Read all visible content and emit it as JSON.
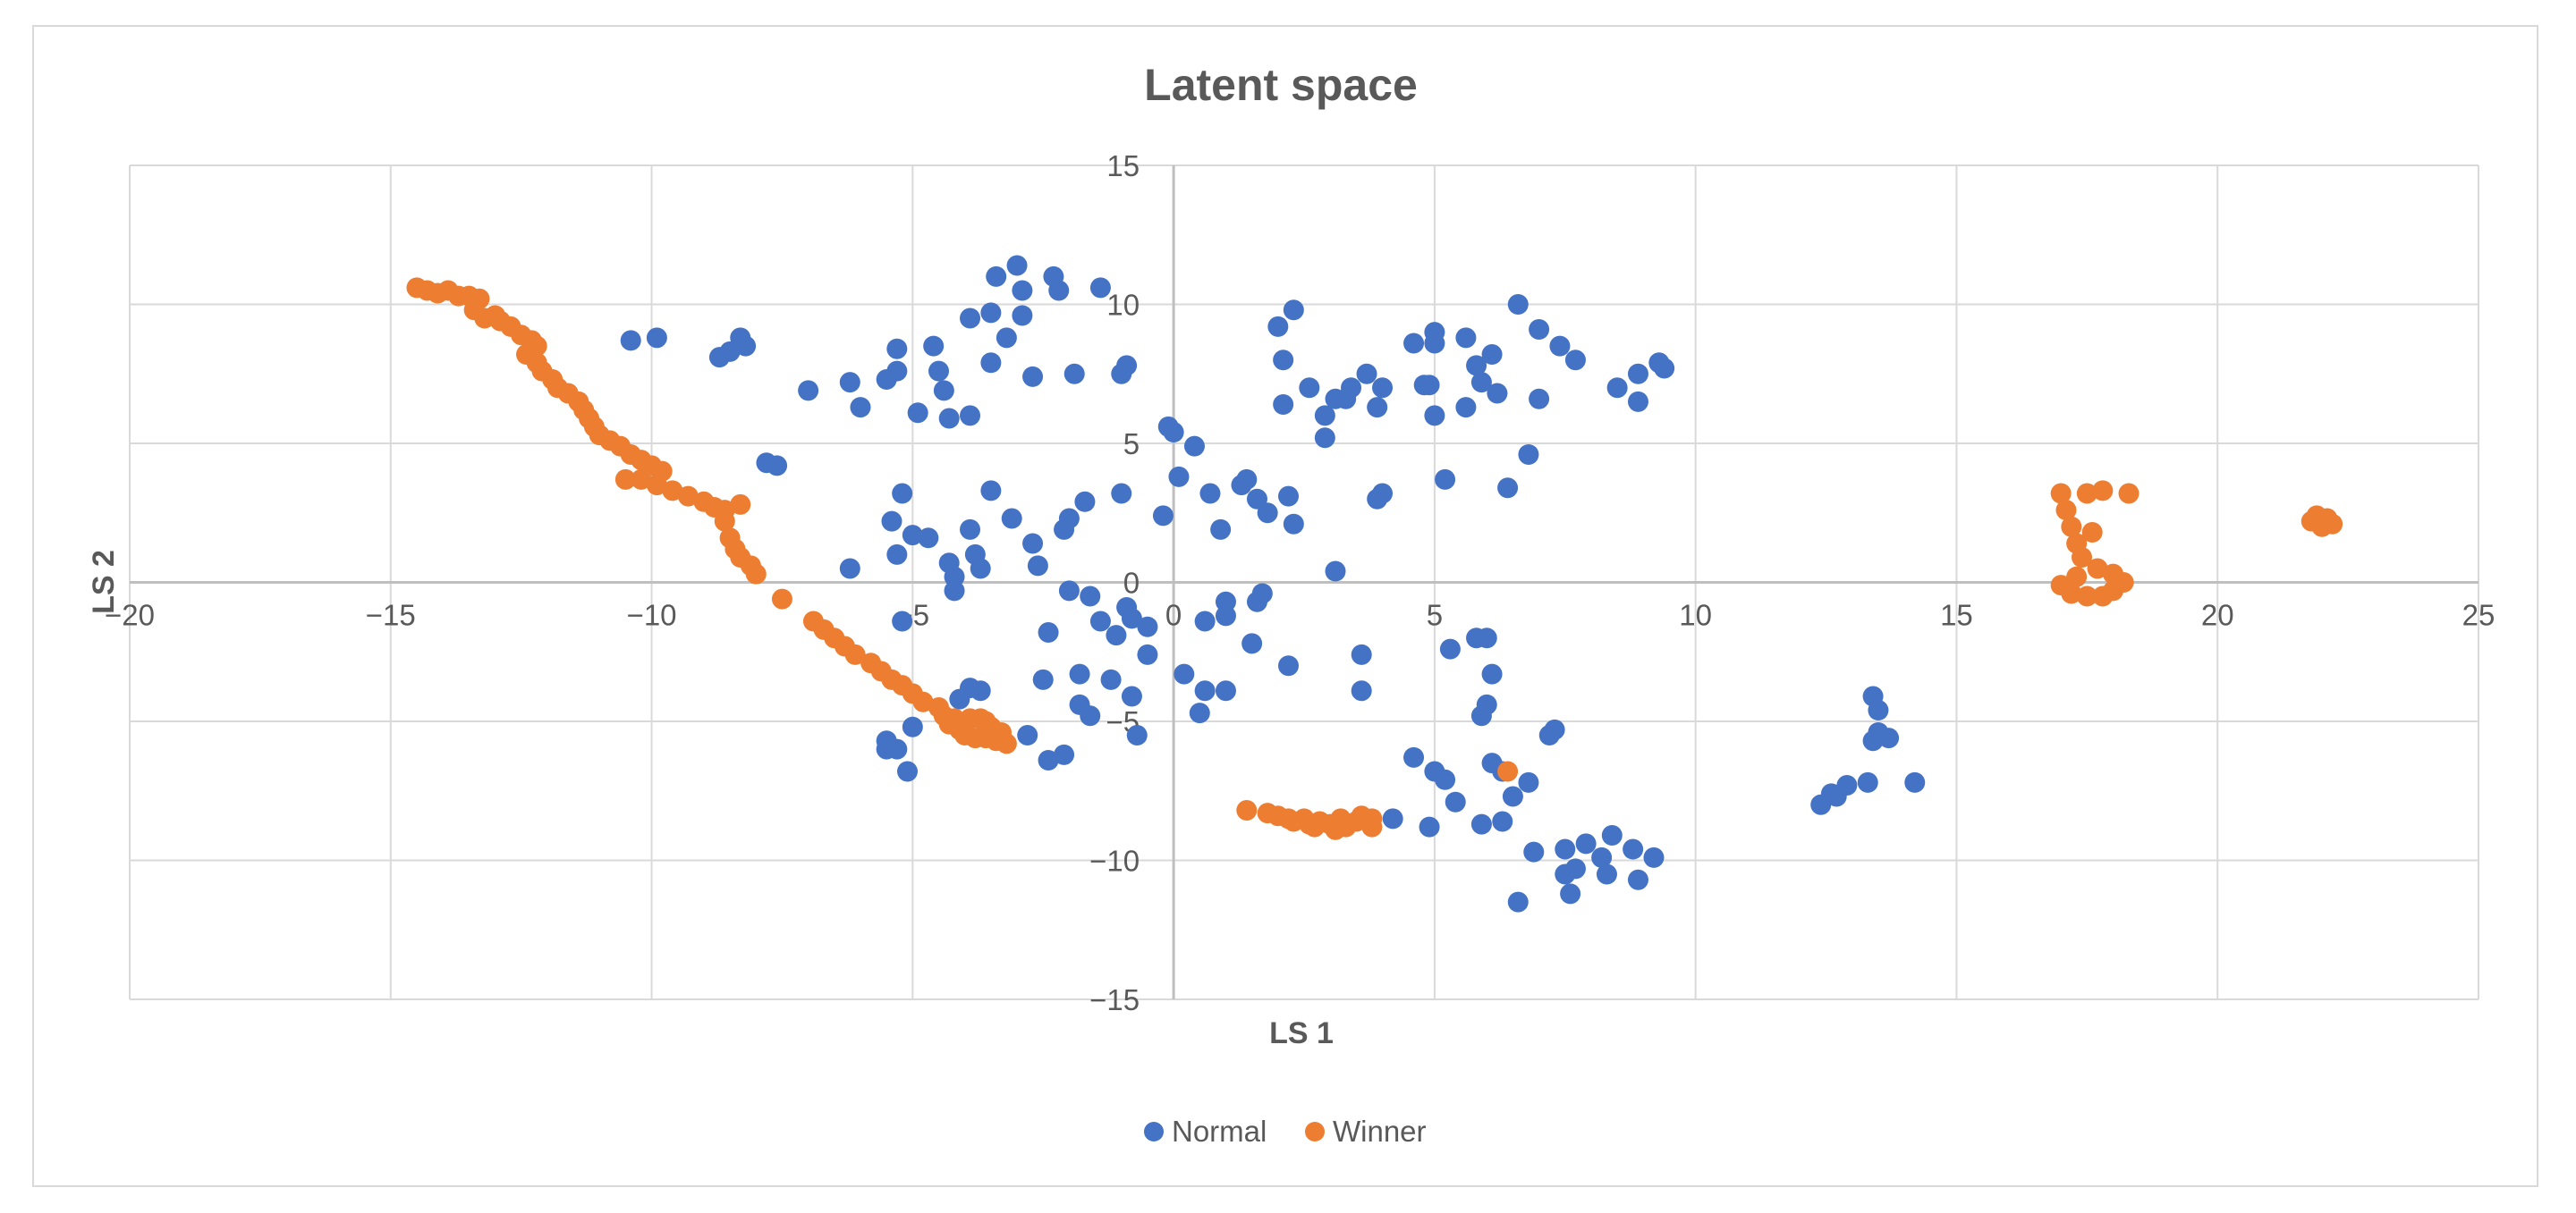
{
  "chart_data": {
    "type": "scatter",
    "title": "Latent space",
    "xlabel": "LS 1",
    "ylabel": "LS 2",
    "xlim": [
      -20,
      25
    ],
    "ylim": [
      -15,
      15
    ],
    "xticks": [
      -20,
      -15,
      -10,
      -5,
      0,
      5,
      10,
      15,
      20,
      25
    ],
    "yticks": [
      -15,
      -10,
      -5,
      0,
      5,
      10,
      15
    ],
    "grid": true,
    "legend_position": "bottom",
    "series": [
      {
        "name": "Normal",
        "color": "#4472c4",
        "points": [
          [
            -10.4,
            8.7
          ],
          [
            -9.9,
            8.8
          ],
          [
            -8.7,
            8.1
          ],
          [
            -8.5,
            8.3
          ],
          [
            -8.3,
            8.8
          ],
          [
            -8.2,
            8.5
          ],
          [
            -7.8,
            4.3
          ],
          [
            -7.6,
            4.2
          ],
          [
            -7.0,
            6.9
          ],
          [
            -6.2,
            7.2
          ],
          [
            -6.0,
            6.3
          ],
          [
            -6.2,
            0.5
          ],
          [
            -5.5,
            7.3
          ],
          [
            -5.3,
            7.6
          ],
          [
            -5.3,
            8.4
          ],
          [
            -5.4,
            2.2
          ],
          [
            -5.2,
            3.2
          ],
          [
            -5.3,
            1.0
          ],
          [
            -5.0,
            1.7
          ],
          [
            -4.9,
            6.1
          ],
          [
            -4.6,
            8.5
          ],
          [
            -4.7,
            1.6
          ],
          [
            -4.5,
            7.6
          ],
          [
            -4.4,
            6.9
          ],
          [
            -4.3,
            5.9
          ],
          [
            -4.3,
            0.7
          ],
          [
            -4.2,
            0.2
          ],
          [
            -4.2,
            -0.3
          ],
          [
            -3.9,
            6.0
          ],
          [
            -3.9,
            9.5
          ],
          [
            -3.9,
            1.9
          ],
          [
            -3.8,
            1.0
          ],
          [
            -3.7,
            0.5
          ],
          [
            -3.5,
            7.9
          ],
          [
            -3.5,
            9.7
          ],
          [
            -3.5,
            3.3
          ],
          [
            -3.4,
            11.0
          ],
          [
            -3.2,
            8.8
          ],
          [
            -3.1,
            2.3
          ],
          [
            -3.0,
            11.4
          ],
          [
            -2.9,
            10.5
          ],
          [
            -2.9,
            9.6
          ],
          [
            -2.8,
            -5.5
          ],
          [
            -2.7,
            1.4
          ],
          [
            -2.7,
            7.4
          ],
          [
            -2.6,
            0.6
          ],
          [
            -2.3,
            11.0
          ],
          [
            -2.2,
            10.5
          ],
          [
            -2.4,
            -1.8
          ],
          [
            -2.5,
            -3.5
          ],
          [
            -2.4,
            -6.4
          ],
          [
            -2.1,
            -6.2
          ],
          [
            -2.1,
            1.9
          ],
          [
            -2.0,
            2.3
          ],
          [
            -2.0,
            -0.3
          ],
          [
            -1.9,
            7.5
          ],
          [
            -1.8,
            -3.3
          ],
          [
            -1.8,
            -4.4
          ],
          [
            -1.7,
            2.9
          ],
          [
            -1.6,
            -0.5
          ],
          [
            -1.6,
            -4.8
          ],
          [
            -1.4,
            -1.4
          ],
          [
            -1.4,
            10.6
          ],
          [
            -1.2,
            -3.5
          ],
          [
            -1.1,
            -1.9
          ],
          [
            -1.0,
            3.2
          ],
          [
            -1.0,
            7.5
          ],
          [
            -0.9,
            7.8
          ],
          [
            -0.9,
            -0.9
          ],
          [
            -0.8,
            -1.3
          ],
          [
            -0.8,
            -4.1
          ],
          [
            -0.7,
            -5.5
          ],
          [
            -0.5,
            -1.6
          ],
          [
            -0.5,
            -2.6
          ],
          [
            -0.2,
            2.4
          ],
          [
            -0.1,
            5.6
          ],
          [
            0.0,
            5.4
          ],
          [
            0.1,
            3.8
          ],
          [
            0.2,
            -3.3
          ],
          [
            0.4,
            4.9
          ],
          [
            0.5,
            -4.7
          ],
          [
            0.6,
            -3.9
          ],
          [
            0.6,
            -1.4
          ],
          [
            0.7,
            3.2
          ],
          [
            0.9,
            1.9
          ],
          [
            1.0,
            -0.7
          ],
          [
            1.0,
            -1.2
          ],
          [
            1.0,
            -3.9
          ],
          [
            1.3,
            3.5
          ],
          [
            1.4,
            3.7
          ],
          [
            1.5,
            -2.2
          ],
          [
            1.6,
            3.0
          ],
          [
            1.6,
            -0.7
          ],
          [
            1.7,
            -0.4
          ],
          [
            1.8,
            2.5
          ],
          [
            2.0,
            9.2
          ],
          [
            2.1,
            8.0
          ],
          [
            2.1,
            6.4
          ],
          [
            2.2,
            3.1
          ],
          [
            2.3,
            2.1
          ],
          [
            2.3,
            9.8
          ],
          [
            2.2,
            -3.0
          ],
          [
            2.6,
            7.0
          ],
          [
            2.9,
            5.2
          ],
          [
            2.9,
            6.0
          ],
          [
            3.1,
            6.6
          ],
          [
            3.1,
            0.4
          ],
          [
            3.3,
            6.6
          ],
          [
            3.4,
            7.0
          ],
          [
            3.6,
            -2.6
          ],
          [
            3.6,
            -3.9
          ],
          [
            3.7,
            7.5
          ],
          [
            3.9,
            3.0
          ],
          [
            3.9,
            6.3
          ],
          [
            4.0,
            7.0
          ],
          [
            4.0,
            3.2
          ],
          [
            4.2,
            -8.5
          ],
          [
            4.6,
            8.6
          ],
          [
            4.6,
            -6.3
          ],
          [
            4.8,
            7.1
          ],
          [
            4.9,
            7.1
          ],
          [
            4.9,
            -8.8
          ],
          [
            5.0,
            8.6
          ],
          [
            5.0,
            9.0
          ],
          [
            5.0,
            6.0
          ],
          [
            5.0,
            -6.8
          ],
          [
            5.2,
            3.7
          ],
          [
            5.2,
            -7.1
          ],
          [
            5.3,
            -2.4
          ],
          [
            5.4,
            -7.9
          ],
          [
            5.6,
            8.8
          ],
          [
            5.6,
            6.3
          ],
          [
            5.8,
            7.8
          ],
          [
            5.8,
            -2.0
          ],
          [
            5.9,
            7.2
          ],
          [
            5.9,
            -4.8
          ],
          [
            5.9,
            -8.7
          ],
          [
            6.0,
            -2.0
          ],
          [
            6.0,
            -4.4
          ],
          [
            6.1,
            8.2
          ],
          [
            6.1,
            -3.3
          ],
          [
            6.1,
            -6.5
          ],
          [
            6.2,
            6.8
          ],
          [
            6.3,
            -6.8
          ],
          [
            6.3,
            -8.6
          ],
          [
            6.4,
            3.4
          ],
          [
            6.5,
            -7.7
          ],
          [
            6.6,
            10.0
          ],
          [
            6.6,
            -11.5
          ],
          [
            6.8,
            4.6
          ],
          [
            6.8,
            -7.2
          ],
          [
            6.9,
            -9.7
          ],
          [
            7.0,
            9.1
          ],
          [
            7.0,
            6.6
          ],
          [
            7.2,
            -5.5
          ],
          [
            7.3,
            -5.3
          ],
          [
            7.4,
            8.5
          ],
          [
            7.5,
            -9.6
          ],
          [
            7.5,
            -10.5
          ],
          [
            7.6,
            -11.2
          ],
          [
            7.7,
            8.0
          ],
          [
            7.7,
            -10.3
          ],
          [
            7.9,
            -9.4
          ],
          [
            8.2,
            -9.9
          ],
          [
            8.3,
            -10.5
          ],
          [
            8.4,
            -9.1
          ],
          [
            8.5,
            7.0
          ],
          [
            8.8,
            -9.6
          ],
          [
            8.9,
            7.5
          ],
          [
            8.9,
            6.5
          ],
          [
            8.9,
            -10.7
          ],
          [
            9.2,
            -9.9
          ],
          [
            9.3,
            7.9
          ],
          [
            9.4,
            7.7
          ],
          [
            12.4,
            -8.0
          ],
          [
            12.6,
            -7.6
          ],
          [
            12.7,
            -7.7
          ],
          [
            12.9,
            -7.3
          ],
          [
            13.3,
            -7.2
          ],
          [
            13.4,
            -4.1
          ],
          [
            13.5,
            -4.6
          ],
          [
            13.4,
            -5.7
          ],
          [
            13.5,
            -5.4
          ],
          [
            13.7,
            -5.6
          ],
          [
            14.2,
            -7.2
          ],
          [
            -5.5,
            -5.7
          ],
          [
            -5.5,
            -6.0
          ],
          [
            -5.3,
            -6.0
          ],
          [
            -5.1,
            -6.8
          ],
          [
            -5.0,
            -5.2
          ],
          [
            -5.2,
            -1.4
          ],
          [
            -4.1,
            -4.2
          ],
          [
            -3.9,
            -3.8
          ],
          [
            -3.7,
            -3.9
          ]
        ]
      },
      {
        "name": "Winner",
        "color": "#ed7d31",
        "points": [
          [
            -14.5,
            10.6
          ],
          [
            -14.3,
            10.5
          ],
          [
            -14.1,
            10.4
          ],
          [
            -13.9,
            10.5
          ],
          [
            -13.7,
            10.3
          ],
          [
            -13.5,
            10.3
          ],
          [
            -13.3,
            10.2
          ],
          [
            -13.4,
            9.8
          ],
          [
            -13.2,
            9.5
          ],
          [
            -13.0,
            9.6
          ],
          [
            -12.9,
            9.4
          ],
          [
            -12.7,
            9.2
          ],
          [
            -12.5,
            8.9
          ],
          [
            -12.3,
            8.7
          ],
          [
            -12.2,
            8.5
          ],
          [
            -12.4,
            8.2
          ],
          [
            -12.2,
            7.9
          ],
          [
            -12.1,
            7.6
          ],
          [
            -11.9,
            7.3
          ],
          [
            -11.8,
            7.0
          ],
          [
            -11.6,
            6.8
          ],
          [
            -11.4,
            6.5
          ],
          [
            -11.3,
            6.2
          ],
          [
            -11.2,
            5.9
          ],
          [
            -11.1,
            5.6
          ],
          [
            -11.0,
            5.3
          ],
          [
            -10.8,
            5.1
          ],
          [
            -10.6,
            4.9
          ],
          [
            -10.4,
            4.6
          ],
          [
            -10.2,
            4.4
          ],
          [
            -10.0,
            4.2
          ],
          [
            -9.8,
            4.0
          ],
          [
            -10.5,
            3.7
          ],
          [
            -10.2,
            3.7
          ],
          [
            -9.9,
            3.5
          ],
          [
            -9.6,
            3.3
          ],
          [
            -9.3,
            3.1
          ],
          [
            -9.0,
            2.9
          ],
          [
            -8.8,
            2.7
          ],
          [
            -8.6,
            2.6
          ],
          [
            -8.3,
            2.8
          ],
          [
            -8.6,
            2.2
          ],
          [
            -8.5,
            1.6
          ],
          [
            -8.4,
            1.2
          ],
          [
            -8.3,
            0.9
          ],
          [
            -8.1,
            0.6
          ],
          [
            -8.0,
            0.3
          ],
          [
            -7.5,
            -0.6
          ],
          [
            -6.9,
            -1.4
          ],
          [
            -6.7,
            -1.7
          ],
          [
            -6.5,
            -2.0
          ],
          [
            -6.3,
            -2.3
          ],
          [
            -6.1,
            -2.6
          ],
          [
            -5.8,
            -2.9
          ],
          [
            -5.6,
            -3.2
          ],
          [
            -5.4,
            -3.5
          ],
          [
            -5.2,
            -3.7
          ],
          [
            -5.0,
            -4.0
          ],
          [
            -4.8,
            -4.3
          ],
          [
            -4.5,
            -4.5
          ],
          [
            -4.4,
            -4.8
          ],
          [
            -4.3,
            -5.1
          ],
          [
            -4.1,
            -5.3
          ],
          [
            -4.0,
            -5.5
          ],
          [
            -3.8,
            -5.6
          ],
          [
            -3.6,
            -5.6
          ],
          [
            -3.4,
            -5.7
          ],
          [
            -3.3,
            -5.4
          ],
          [
            -3.6,
            -5.0
          ],
          [
            -3.9,
            -4.9
          ],
          [
            -3.7,
            -4.9
          ],
          [
            -3.5,
            -5.2
          ],
          [
            -3.2,
            -5.8
          ],
          [
            -4.2,
            -4.9
          ],
          [
            1.4,
            -8.2
          ],
          [
            1.8,
            -8.3
          ],
          [
            2.0,
            -8.4
          ],
          [
            2.2,
            -8.5
          ],
          [
            2.3,
            -8.6
          ],
          [
            2.5,
            -8.5
          ],
          [
            2.6,
            -8.7
          ],
          [
            2.7,
            -8.8
          ],
          [
            2.8,
            -8.6
          ],
          [
            3.0,
            -8.7
          ],
          [
            3.1,
            -8.9
          ],
          [
            3.2,
            -8.5
          ],
          [
            3.3,
            -8.8
          ],
          [
            3.5,
            -8.6
          ],
          [
            3.6,
            -8.4
          ],
          [
            3.8,
            -8.5
          ],
          [
            3.8,
            -8.8
          ],
          [
            6.4,
            -6.8
          ],
          [
            17.0,
            3.2
          ],
          [
            17.1,
            2.6
          ],
          [
            17.2,
            2.0
          ],
          [
            17.3,
            1.4
          ],
          [
            17.4,
            0.9
          ],
          [
            17.3,
            0.2
          ],
          [
            17.0,
            -0.1
          ],
          [
            17.2,
            -0.4
          ],
          [
            17.5,
            -0.5
          ],
          [
            17.8,
            -0.5
          ],
          [
            18.0,
            -0.3
          ],
          [
            18.2,
            0.0
          ],
          [
            18.0,
            0.3
          ],
          [
            17.7,
            0.5
          ],
          [
            17.6,
            1.8
          ],
          [
            17.5,
            3.2
          ],
          [
            17.8,
            3.3
          ],
          [
            18.3,
            3.2
          ],
          [
            21.8,
            2.2
          ],
          [
            21.9,
            2.4
          ],
          [
            22.0,
            2.0
          ],
          [
            22.1,
            2.3
          ],
          [
            22.0,
            2.2
          ],
          [
            22.2,
            2.1
          ]
        ]
      }
    ]
  }
}
